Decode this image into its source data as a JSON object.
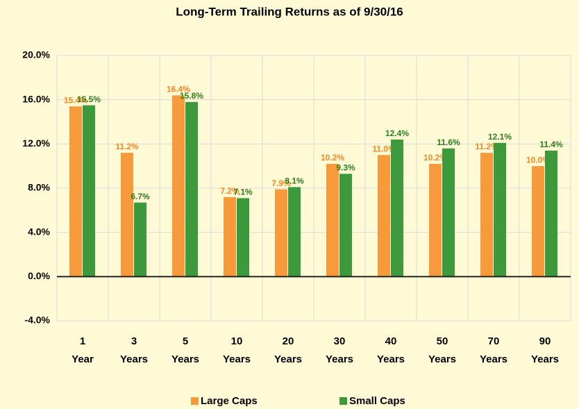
{
  "chart_data": {
    "type": "bar",
    "title": "Long-Term Trailing Returns as of 9/30/16",
    "categories": [
      [
        "1",
        "Year"
      ],
      [
        "3",
        "Years"
      ],
      [
        "5",
        "Years"
      ],
      [
        "10",
        "Years"
      ],
      [
        "20",
        "Years"
      ],
      [
        "30",
        "Years"
      ],
      [
        "40",
        "Years"
      ],
      [
        "50",
        "Years"
      ],
      [
        "70",
        "Years"
      ],
      [
        "90",
        "Years"
      ]
    ],
    "series": [
      {
        "name": "Large Caps",
        "color": "#f79a3b",
        "label_color": "#f7861e",
        "values": [
          15.4,
          11.2,
          16.4,
          7.2,
          7.9,
          10.2,
          11.0,
          10.2,
          11.2,
          10.0
        ],
        "value_labels": [
          "15.4%",
          "11.2%",
          "16.4%",
          "7.2%",
          "7.9%",
          "10.2%",
          "11.0%",
          "10.2%",
          "11.2%",
          "10.0%"
        ]
      },
      {
        "name": "Small Caps",
        "color": "#3c9a3c",
        "label_color": "#2e7d1e",
        "values": [
          15.5,
          6.7,
          15.8,
          7.1,
          8.1,
          9.3,
          12.4,
          11.6,
          12.1,
          11.4
        ],
        "value_labels": [
          "15.5%",
          "6.7%",
          "15.8%",
          "7.1%",
          "8.1%",
          "9.3%",
          "12.4%",
          "11.6%",
          "12.1%",
          "11.4%"
        ]
      }
    ],
    "ylim": [
      -4,
      20
    ],
    "yticks": [
      {
        "value": -4,
        "label": "-4.0%"
      },
      {
        "value": 0,
        "label": "0.0%"
      },
      {
        "value": 4,
        "label": "4.0%"
      },
      {
        "value": 8,
        "label": "8.0%"
      },
      {
        "value": 12,
        "label": "12.0%"
      },
      {
        "value": 16,
        "label": "16.0%"
      },
      {
        "value": 20,
        "label": "20.0%"
      }
    ],
    "grid": true,
    "legend": "bottom"
  }
}
